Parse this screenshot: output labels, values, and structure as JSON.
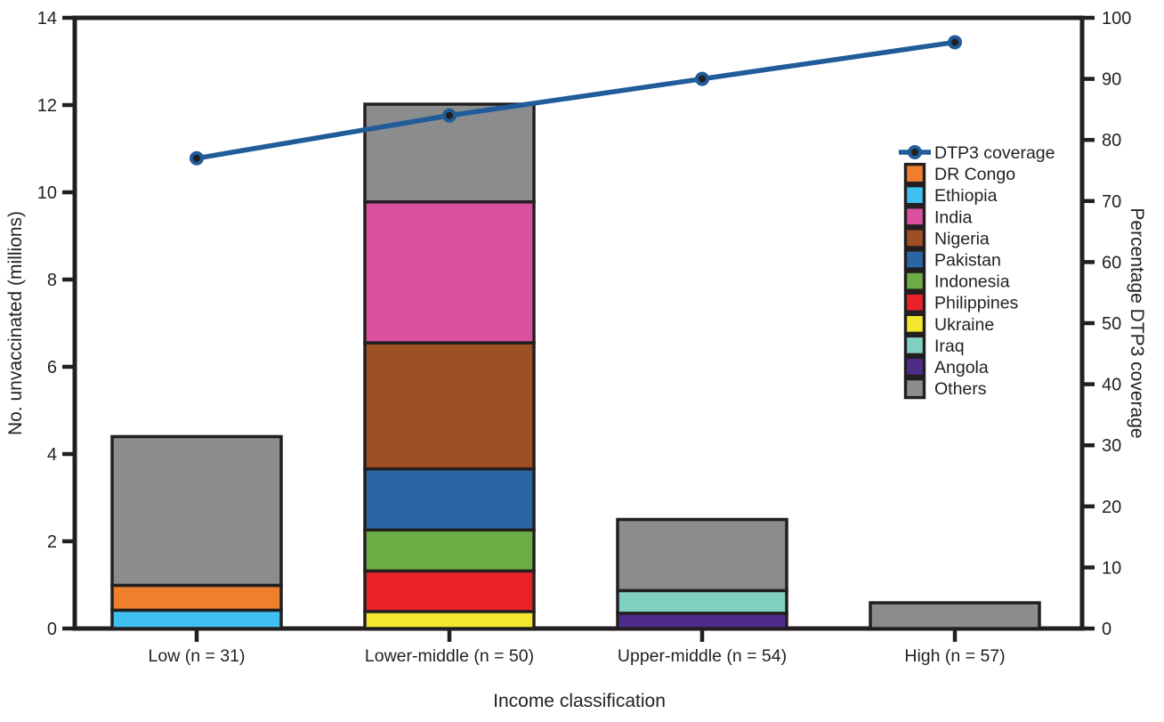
{
  "figure": {
    "background": "#FFFFFF",
    "axis_color": "#231F20"
  },
  "chart_data": {
    "type": "stacked-bar+line",
    "title": "",
    "xlabel": "Income classification",
    "y_left": {
      "label": "No. unvaccinated (millions)",
      "min": 0,
      "max": 14,
      "ticks": [
        0,
        2,
        4,
        6,
        8,
        10,
        12,
        14
      ]
    },
    "y_right": {
      "label": "Percentage DTP3 coverage",
      "min": 0,
      "max": 100,
      "ticks": [
        0,
        10,
        20,
        30,
        40,
        50,
        60,
        70,
        80,
        90,
        100
      ]
    },
    "categories": [
      "Low (n = 31)",
      "Lower-middle (n = 50)",
      "Upper-middle (n = 54)",
      "High (n = 57)"
    ],
    "stack_note": "segments listed bottom-to-top, values in millions unvaccinated",
    "bars": [
      {
        "category": "Low (n = 31)",
        "total": 4.4,
        "segments": [
          {
            "country": "Ethiopia",
            "value": 0.42
          },
          {
            "country": "DR Congo",
            "value": 0.57
          },
          {
            "country": "Others",
            "value": 3.41
          }
        ]
      },
      {
        "category": "Lower-middle (n = 50)",
        "total": 12.02,
        "segments": [
          {
            "country": "Ukraine",
            "value": 0.39
          },
          {
            "country": "Philippines",
            "value": 0.93
          },
          {
            "country": "Indonesia",
            "value": 0.94
          },
          {
            "country": "Pakistan",
            "value": 1.4
          },
          {
            "country": "Nigeria",
            "value": 2.89
          },
          {
            "country": "India",
            "value": 3.23
          },
          {
            "country": "Others",
            "value": 2.24
          }
        ]
      },
      {
        "category": "Upper-middle (n = 54)",
        "total": 2.5,
        "segments": [
          {
            "country": "Angola",
            "value": 0.35
          },
          {
            "country": "Iraq",
            "value": 0.52
          },
          {
            "country": "Others",
            "value": 1.63
          }
        ]
      },
      {
        "category": "High (n = 57)",
        "total": 0.59,
        "segments": [
          {
            "country": "Others",
            "value": 0.59
          }
        ]
      }
    ],
    "line": {
      "name": "DTP3 coverage",
      "axis": "right",
      "values": [
        77,
        84,
        90,
        96
      ],
      "color": "#1F5C99",
      "marker_center_color": "#231F20"
    },
    "colors": {
      "DTP3 coverage": "#1F5C99",
      "DR Congo": "#F07F2D",
      "Ethiopia": "#3EC1F0",
      "India": "#D9519F",
      "Nigeria": "#9E4F24",
      "Pakistan": "#2966A3",
      "Indonesia": "#6CAE45",
      "Philippines": "#E92228",
      "Ukraine": "#F2E72E",
      "Iraq": "#80D0C2",
      "Angola": "#4F2B8A",
      "Others": "#8A8C8E"
    },
    "legend": {
      "position": "inside-right",
      "entries": [
        "DTP3 coverage",
        "DR Congo",
        "Ethiopia",
        "India",
        "Nigeria",
        "Pakistan",
        "Indonesia",
        "Philippines",
        "Ukraine",
        "Iraq",
        "Angola",
        "Others"
      ]
    }
  }
}
